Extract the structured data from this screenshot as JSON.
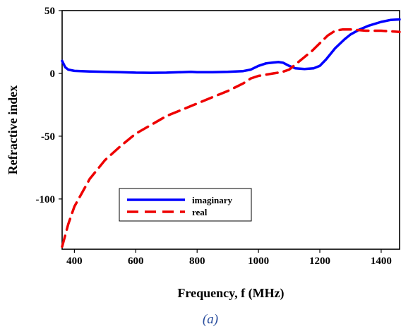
{
  "chart_data": {
    "type": "line",
    "title": "",
    "xlabel": "Frequency, f (MHz)",
    "ylabel": "Refractive index",
    "xlim": [
      360,
      1460
    ],
    "ylim": [
      -140,
      50
    ],
    "xticks": [
      400,
      600,
      800,
      1000,
      1200,
      1400
    ],
    "yticks": [
      50,
      0,
      -50,
      -100
    ],
    "grid": false,
    "legend_position": "lower-left",
    "series": [
      {
        "name": "imaginary",
        "color": "#0000ff",
        "style": "solid",
        "x": [
          360,
          370,
          380,
          400,
          450,
          500,
          550,
          600,
          650,
          700,
          750,
          780,
          800,
          850,
          900,
          950,
          975,
          1000,
          1025,
          1050,
          1065,
          1080,
          1100,
          1120,
          1150,
          1180,
          1200,
          1220,
          1250,
          1280,
          1300,
          1330,
          1360,
          1400,
          1430,
          1460
        ],
        "y": [
          10,
          5,
          3,
          2,
          1.5,
          1.2,
          1,
          0.6,
          0.5,
          0.6,
          1,
          1.2,
          1,
          1,
          1.2,
          1.8,
          3,
          6,
          8,
          8.7,
          9,
          8.5,
          6,
          4,
          3.5,
          4,
          6,
          11,
          20,
          27,
          31,
          35,
          38,
          41,
          42.5,
          43
        ]
      },
      {
        "name": "real",
        "color": "#ee0000",
        "style": "dashed",
        "x": [
          360,
          380,
          400,
          450,
          500,
          550,
          600,
          650,
          700,
          750,
          800,
          850,
          900,
          950,
          975,
          1000,
          1025,
          1050,
          1075,
          1100,
          1125,
          1150,
          1175,
          1200,
          1225,
          1250,
          1275,
          1300,
          1350,
          1400,
          1460
        ],
        "y": [
          -138,
          -120,
          -106,
          -84,
          -69,
          -58,
          -48,
          -41,
          -34,
          -29,
          -24,
          -19,
          -14,
          -8,
          -4,
          -2,
          -1,
          0,
          1,
          3,
          8,
          13,
          18,
          24,
          30,
          34,
          35,
          35,
          34,
          34,
          33
        ]
      }
    ]
  },
  "caption": "(a)"
}
